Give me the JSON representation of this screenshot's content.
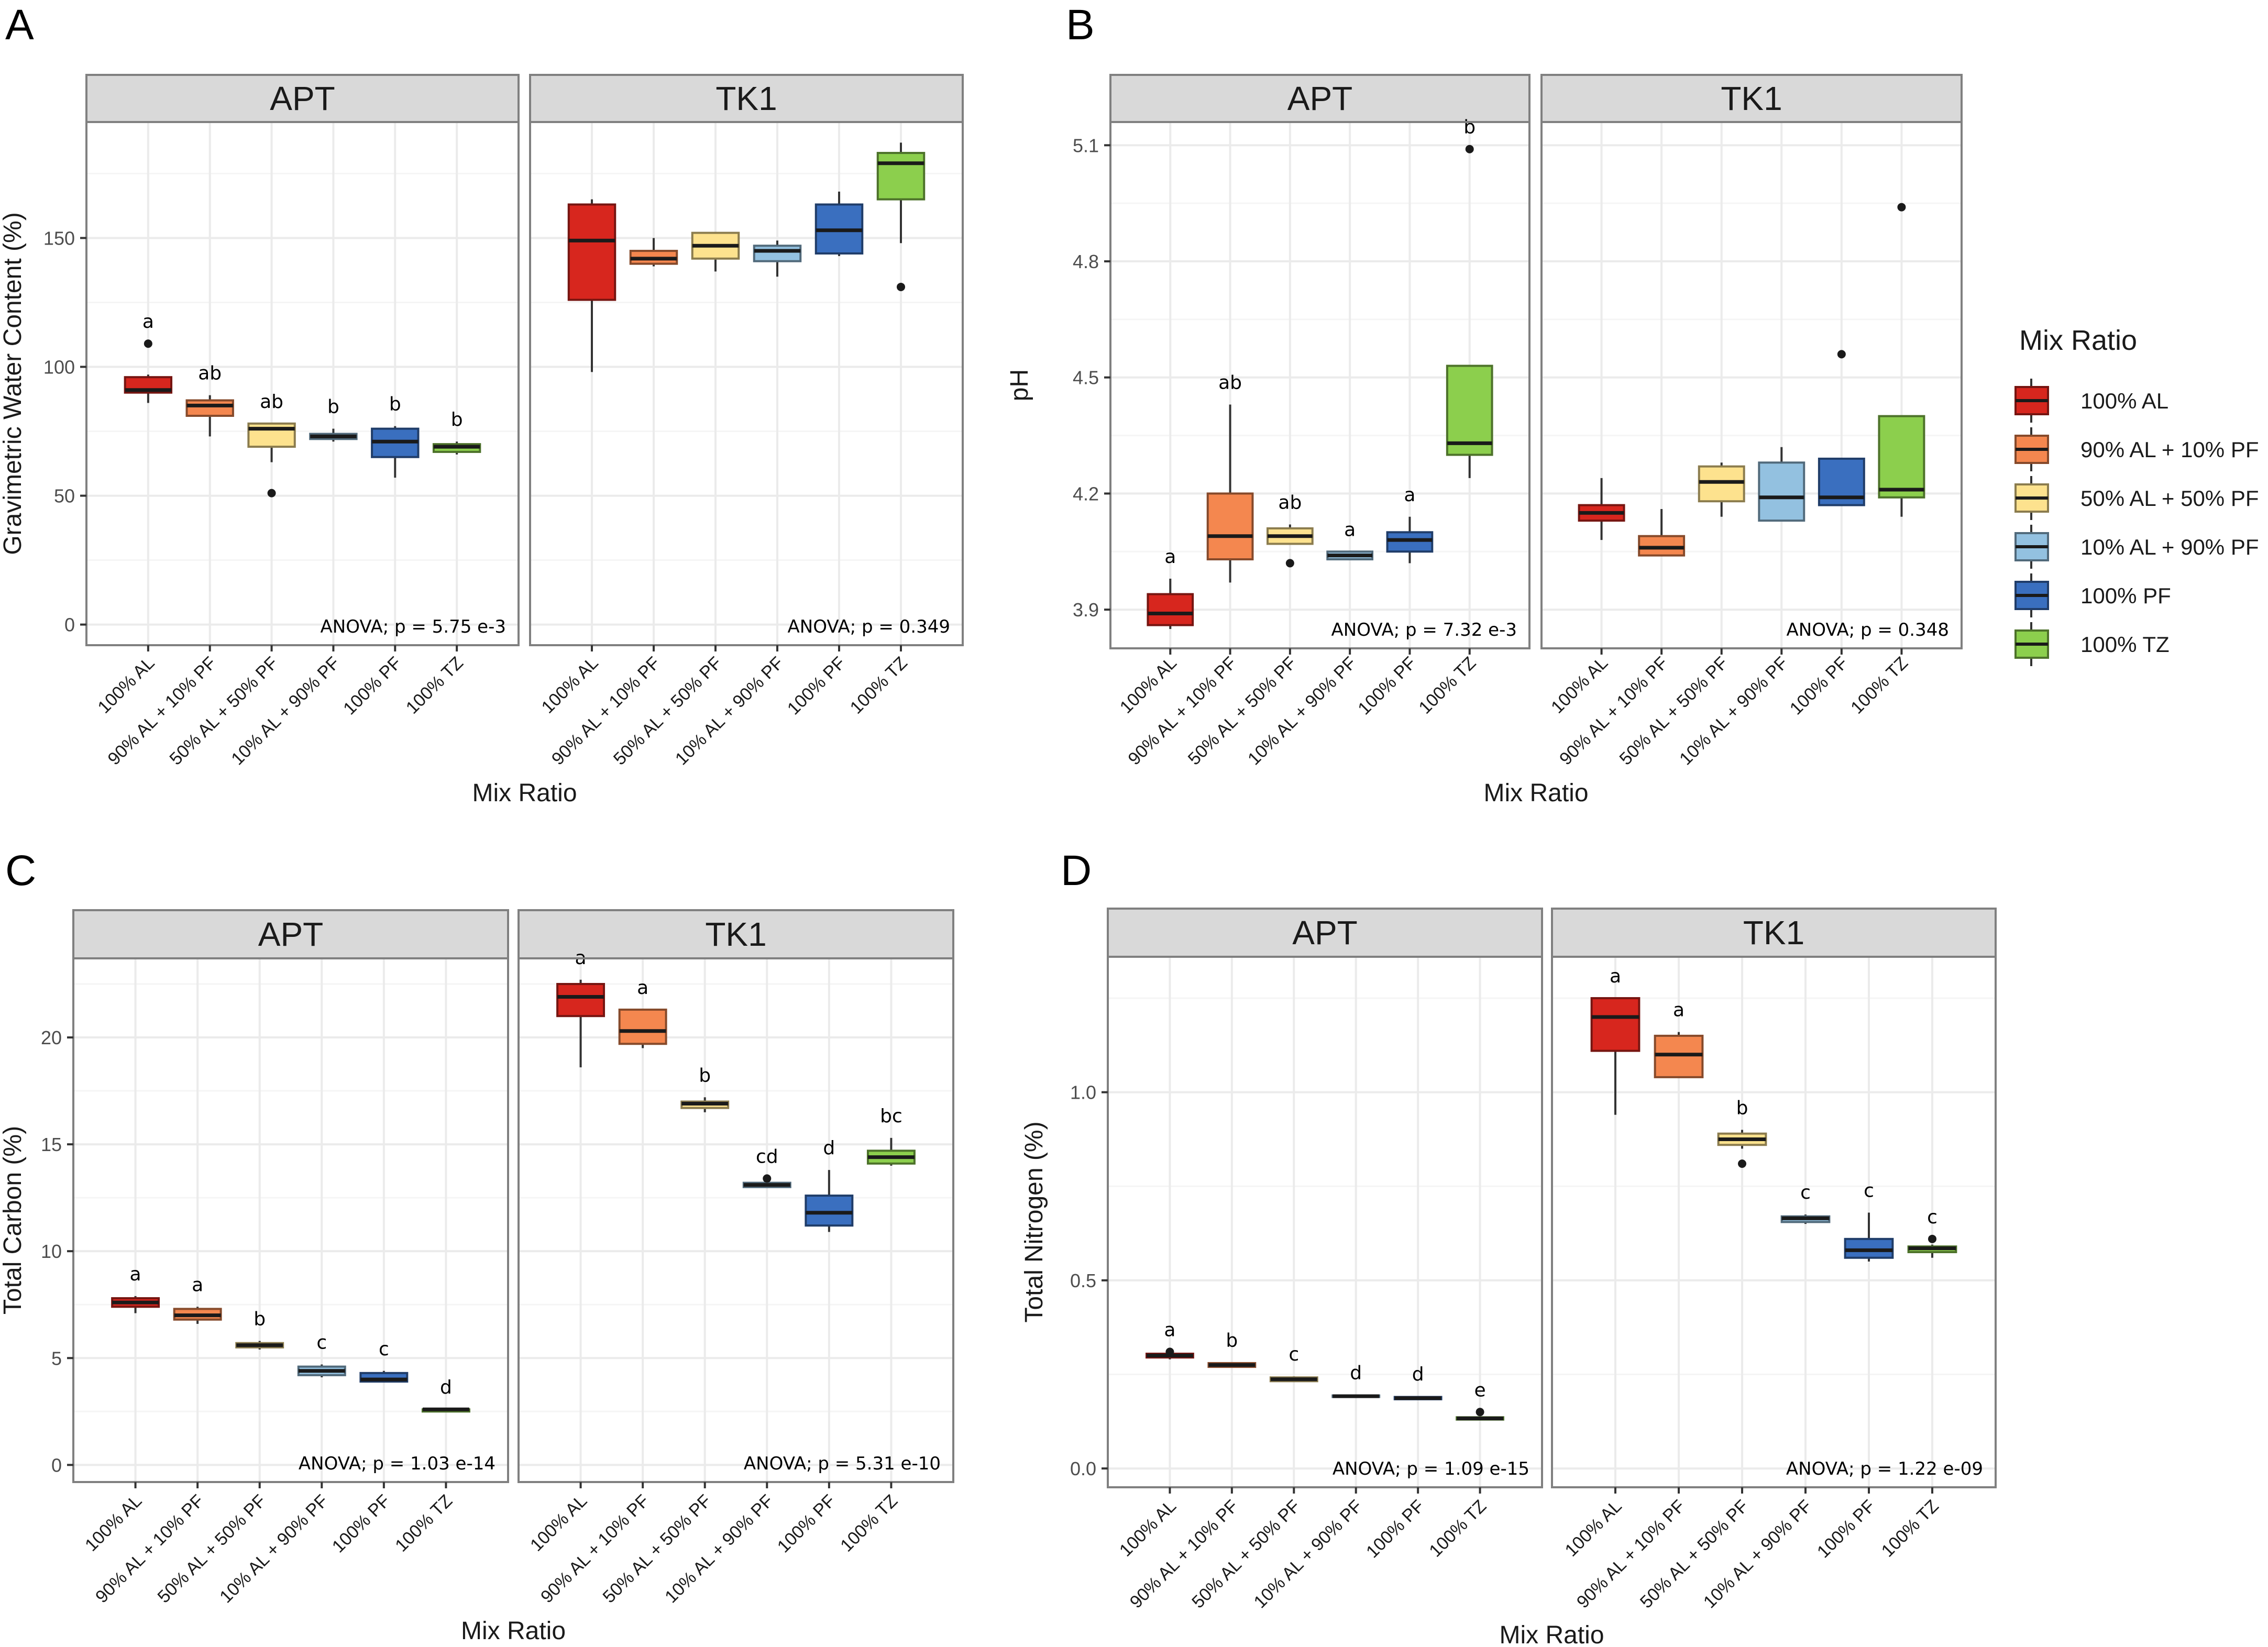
{
  "chart_data": [
    {
      "type": "box",
      "panel": "A",
      "title": "",
      "xlabel": "Mix Ratio",
      "ylabel": "Gravimetric Water Content (%)",
      "ylim": [
        -8,
        195
      ],
      "yticks": [
        0,
        50,
        100,
        150
      ],
      "categories": [
        "100% AL",
        "90% AL + 10% PF",
        "50% AL + 50% PF",
        "10% AL + 90% PF",
        "100% PF",
        "100% TZ"
      ],
      "facets": [
        {
          "name": "APT",
          "anova": "ANOVA; p = 5.75 e-3",
          "boxes": [
            {
              "min": 86,
              "q1": 90,
              "median": 91,
              "q3": 96,
              "max": 97,
              "outliers": [
                109
              ],
              "label": "a"
            },
            {
              "min": 73,
              "q1": 81,
              "median": 85,
              "q3": 87,
              "max": 89,
              "outliers": [],
              "label": "ab"
            },
            {
              "min": 63,
              "q1": 69,
              "median": 76,
              "q3": 78,
              "max": 78,
              "outliers": [
                51
              ],
              "label": "ab"
            },
            {
              "min": 71,
              "q1": 72,
              "median": 73,
              "q3": 74,
              "max": 76,
              "outliers": [],
              "label": "b"
            },
            {
              "min": 57,
              "q1": 65,
              "median": 71,
              "q3": 76,
              "max": 77,
              "outliers": [],
              "label": "b"
            },
            {
              "min": 66,
              "q1": 67,
              "median": 69,
              "q3": 70,
              "max": 71,
              "outliers": [],
              "label": "b"
            }
          ]
        },
        {
          "name": "TK1",
          "anova": "ANOVA; p = 0.349",
          "boxes": [
            {
              "min": 98,
              "q1": 126,
              "median": 149,
              "q3": 163,
              "max": 165,
              "outliers": [],
              "label": ""
            },
            {
              "min": 139,
              "q1": 140,
              "median": 142,
              "q3": 145,
              "max": 150,
              "outliers": [],
              "label": ""
            },
            {
              "min": 137,
              "q1": 142,
              "median": 147,
              "q3": 152,
              "max": 152,
              "outliers": [],
              "label": ""
            },
            {
              "min": 135,
              "q1": 141,
              "median": 145,
              "q3": 147,
              "max": 149,
              "outliers": [],
              "label": ""
            },
            {
              "min": 143,
              "q1": 144,
              "median": 153,
              "q3": 163,
              "max": 168,
              "outliers": [],
              "label": ""
            },
            {
              "min": 148,
              "q1": 165,
              "median": 179,
              "q3": 183,
              "max": 187,
              "outliers": [
                131
              ],
              "label": ""
            }
          ]
        }
      ]
    },
    {
      "type": "box",
      "panel": "B",
      "title": "",
      "xlabel": "Mix Ratio",
      "ylabel": "pH",
      "ylim": [
        3.8,
        5.16
      ],
      "yticks": [
        3.9,
        4.2,
        4.5,
        4.8,
        5.1
      ],
      "categories": [
        "100% AL",
        "90% AL + 10% PF",
        "50% AL + 50% PF",
        "10% AL + 90% PF",
        "100% PF",
        "100% TZ"
      ],
      "facets": [
        {
          "name": "APT",
          "anova": "ANOVA; p = 7.32 e-3",
          "boxes": [
            {
              "min": 3.85,
              "q1": 3.86,
              "median": 3.89,
              "q3": 3.94,
              "max": 3.98,
              "outliers": [],
              "label": "a"
            },
            {
              "min": 3.97,
              "q1": 4.03,
              "median": 4.09,
              "q3": 4.2,
              "max": 4.43,
              "outliers": [],
              "label": "ab"
            },
            {
              "min": 4.07,
              "q1": 4.07,
              "median": 4.09,
              "q3": 4.11,
              "max": 4.12,
              "outliers": [
                4.02
              ],
              "label": "ab"
            },
            {
              "min": 4.03,
              "q1": 4.03,
              "median": 4.04,
              "q3": 4.05,
              "max": 4.05,
              "outliers": [],
              "label": "a"
            },
            {
              "min": 4.02,
              "q1": 4.05,
              "median": 4.08,
              "q3": 4.1,
              "max": 4.14,
              "outliers": [],
              "label": "a"
            },
            {
              "min": 4.24,
              "q1": 4.3,
              "median": 4.33,
              "q3": 4.53,
              "max": 4.53,
              "outliers": [
                5.09
              ],
              "label": "b"
            }
          ]
        },
        {
          "name": "TK1",
          "anova": "ANOVA; p = 0.348",
          "boxes": [
            {
              "min": 4.08,
              "q1": 4.13,
              "median": 4.15,
              "q3": 4.17,
              "max": 4.24,
              "outliers": [],
              "label": ""
            },
            {
              "min": 4.04,
              "q1": 4.04,
              "median": 4.06,
              "q3": 4.09,
              "max": 4.16,
              "outliers": [],
              "label": ""
            },
            {
              "min": 4.14,
              "q1": 4.18,
              "median": 4.23,
              "q3": 4.27,
              "max": 4.28,
              "outliers": [],
              "label": ""
            },
            {
              "min": 4.13,
              "q1": 4.13,
              "median": 4.19,
              "q3": 4.28,
              "max": 4.32,
              "outliers": [],
              "label": ""
            },
            {
              "min": 4.17,
              "q1": 4.17,
              "median": 4.19,
              "q3": 4.29,
              "max": 4.29,
              "outliers": [
                4.56
              ],
              "label": ""
            },
            {
              "min": 4.14,
              "q1": 4.19,
              "median": 4.21,
              "q3": 4.4,
              "max": 4.4,
              "outliers": [
                4.94
              ],
              "label": ""
            }
          ]
        }
      ]
    },
    {
      "type": "box",
      "panel": "C",
      "title": "",
      "xlabel": "Mix Ratio",
      "ylabel": "Total Carbon (%)",
      "ylim": [
        -0.8,
        23.7
      ],
      "yticks": [
        0,
        5,
        10,
        15,
        20
      ],
      "categories": [
        "100% AL",
        "90% AL + 10% PF",
        "50% AL + 50% PF",
        "10% AL + 90% PF",
        "100% PF",
        "100% TZ"
      ],
      "facets": [
        {
          "name": "APT",
          "anova": "ANOVA; p = 1.03 e-14",
          "boxes": [
            {
              "min": 7.1,
              "q1": 7.4,
              "median": 7.6,
              "q3": 7.8,
              "max": 7.9,
              "outliers": [],
              "label": "a"
            },
            {
              "min": 6.6,
              "q1": 6.8,
              "median": 7.0,
              "q3": 7.3,
              "max": 7.4,
              "outliers": [],
              "label": "a"
            },
            {
              "min": 5.4,
              "q1": 5.5,
              "median": 5.6,
              "q3": 5.7,
              "max": 5.8,
              "outliers": [],
              "label": "b"
            },
            {
              "min": 4.1,
              "q1": 4.2,
              "median": 4.4,
              "q3": 4.6,
              "max": 4.7,
              "outliers": [],
              "label": "c"
            },
            {
              "min": 3.9,
              "q1": 3.9,
              "median": 4.0,
              "q3": 4.3,
              "max": 4.4,
              "outliers": [],
              "label": "c"
            },
            {
              "min": 2.5,
              "q1": 2.5,
              "median": 2.6,
              "q3": 2.6,
              "max": 2.6,
              "outliers": [],
              "label": "d"
            }
          ]
        },
        {
          "name": "TK1",
          "anova": "ANOVA; p = 5.31 e-10",
          "boxes": [
            {
              "min": 18.6,
              "q1": 21.0,
              "median": 21.9,
              "q3": 22.5,
              "max": 22.7,
              "outliers": [],
              "label": "a"
            },
            {
              "min": 19.5,
              "q1": 19.7,
              "median": 20.3,
              "q3": 21.3,
              "max": 21.3,
              "outliers": [],
              "label": "a"
            },
            {
              "min": 16.5,
              "q1": 16.7,
              "median": 16.9,
              "q3": 17.0,
              "max": 17.2,
              "outliers": [],
              "label": "b"
            },
            {
              "min": 13.0,
              "q1": 13.0,
              "median": 13.1,
              "q3": 13.2,
              "max": 13.2,
              "outliers": [
                13.4
              ],
              "label": "cd"
            },
            {
              "min": 10.9,
              "q1": 11.2,
              "median": 11.8,
              "q3": 12.6,
              "max": 13.8,
              "outliers": [],
              "label": "d"
            },
            {
              "min": 14.0,
              "q1": 14.1,
              "median": 14.4,
              "q3": 14.7,
              "max": 15.3,
              "outliers": [],
              "label": "bc"
            }
          ]
        }
      ]
    },
    {
      "type": "box",
      "panel": "D",
      "title": "",
      "xlabel": "Mix Ratio",
      "ylabel": "Total Nitrogen (%)",
      "ylim": [
        -0.05,
        1.36
      ],
      "yticks": [
        0.0,
        0.5,
        1.0
      ],
      "categories": [
        "100% AL",
        "90% AL + 10% PF",
        "50% AL + 50% PF",
        "10% AL + 90% PF",
        "100% PF",
        "100% TZ"
      ],
      "facets": [
        {
          "name": "APT",
          "anova": "ANOVA; p = 1.09 e-15",
          "boxes": [
            {
              "min": 0.29,
              "q1": 0.295,
              "median": 0.3,
              "q3": 0.305,
              "max": 0.31,
              "outliers": [
                0.31
              ],
              "label": "a"
            },
            {
              "min": 0.268,
              "q1": 0.27,
              "median": 0.275,
              "q3": 0.28,
              "max": 0.282,
              "outliers": [],
              "label": "b"
            },
            {
              "min": 0.23,
              "q1": 0.232,
              "median": 0.237,
              "q3": 0.242,
              "max": 0.245,
              "outliers": [],
              "label": "c"
            },
            {
              "min": 0.188,
              "q1": 0.19,
              "median": 0.192,
              "q3": 0.194,
              "max": 0.196,
              "outliers": [],
              "label": "d"
            },
            {
              "min": 0.182,
              "q1": 0.184,
              "median": 0.187,
              "q3": 0.19,
              "max": 0.192,
              "outliers": [],
              "label": "d"
            },
            {
              "min": 0.128,
              "q1": 0.13,
              "median": 0.133,
              "q3": 0.136,
              "max": 0.138,
              "outliers": [
                0.15
              ],
              "label": "e"
            }
          ]
        },
        {
          "name": "TK1",
          "anova": "ANOVA; p = 1.22 e-09",
          "boxes": [
            {
              "min": 0.94,
              "q1": 1.11,
              "median": 1.2,
              "q3": 1.25,
              "max": 1.25,
              "outliers": [],
              "label": "a"
            },
            {
              "min": 1.04,
              "q1": 1.04,
              "median": 1.1,
              "q3": 1.15,
              "max": 1.16,
              "outliers": [],
              "label": "a"
            },
            {
              "min": 0.85,
              "q1": 0.86,
              "median": 0.875,
              "q3": 0.89,
              "max": 0.9,
              "outliers": [
                0.81
              ],
              "label": "b"
            },
            {
              "min": 0.65,
              "q1": 0.655,
              "median": 0.665,
              "q3": 0.67,
              "max": 0.675,
              "outliers": [],
              "label": "c"
            },
            {
              "min": 0.55,
              "q1": 0.56,
              "median": 0.58,
              "q3": 0.61,
              "max": 0.68,
              "outliers": [],
              "label": "c"
            },
            {
              "min": 0.56,
              "q1": 0.575,
              "median": 0.585,
              "q3": 0.59,
              "max": 0.595,
              "outliers": [
                0.61
              ],
              "label": "c"
            }
          ]
        }
      ]
    }
  ],
  "legend": {
    "title": "Mix Ratio",
    "items": [
      {
        "label": "100% AL",
        "color": "#d7261e"
      },
      {
        "label": "90% AL + 10% PF",
        "color": "#f4874f"
      },
      {
        "label": "50% AL + 50% PF",
        "color": "#fde28e"
      },
      {
        "label": "10% AL + 90% PF",
        "color": "#93c1e0"
      },
      {
        "label": "100% PF",
        "color": "#3a6fbf"
      },
      {
        "label": "100% TZ",
        "color": "#8ccf4d"
      }
    ]
  },
  "colors": {
    "strip_fill": "#d9d9d9",
    "strip_border": "#808080",
    "grid_major": "#ebebeb",
    "grid_minor": "#f5f5f5",
    "frame": "#808080"
  }
}
